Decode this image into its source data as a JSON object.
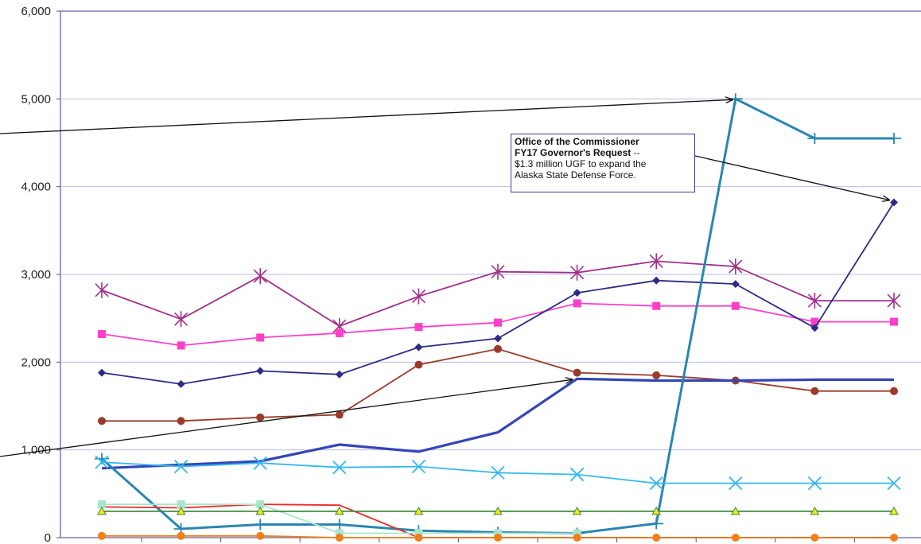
{
  "chart_data": {
    "type": "line",
    "title": "",
    "xlabel": "",
    "ylabel": "",
    "ylim": [
      0,
      6000
    ],
    "y_ticks": [
      "0",
      "1,000",
      "2,000",
      "3,000",
      "4,000",
      "5,000",
      "6,000"
    ],
    "grid": true,
    "x": [
      0,
      1,
      2,
      3,
      4,
      5,
      6,
      7,
      8,
      9,
      10
    ],
    "series": [
      {
        "color": "#a0308a",
        "marker": "asterisk",
        "values": [
          2820,
          2490,
          2980,
          2410,
          2750,
          3030,
          3020,
          3150,
          3090,
          2700,
          2700
        ]
      },
      {
        "color": "#ff3fc8",
        "marker": "square",
        "values": [
          2320,
          2190,
          2280,
          2330,
          2400,
          2450,
          2670,
          2640,
          2640,
          2460,
          2460
        ]
      },
      {
        "color": "#2c2c86",
        "marker": "diamond",
        "values": [
          1880,
          1750,
          1900,
          1860,
          2170,
          2270,
          2790,
          2930,
          2890,
          2390,
          3820
        ]
      },
      {
        "color": "#9a3a2a",
        "marker": "circle",
        "values": [
          1330,
          1330,
          1370,
          1400,
          1970,
          2150,
          1880,
          1850,
          1790,
          1670,
          1670
        ]
      },
      {
        "color": "#3346b8",
        "marker": "none",
        "values": [
          790,
          830,
          870,
          1060,
          980,
          1200,
          1810,
          1790,
          1790,
          1800,
          1800
        ]
      },
      {
        "color": "#2a86b0",
        "marker": "plus",
        "values": [
          900,
          100,
          150,
          150,
          80,
          60,
          50,
          160,
          5000,
          4550,
          4550
        ]
      },
      {
        "color": "#33b8f0",
        "marker": "x",
        "values": [
          860,
          810,
          850,
          800,
          810,
          740,
          720,
          620,
          620,
          620,
          620
        ]
      },
      {
        "color": "#ee2a2a",
        "marker": "none",
        "values": [
          350,
          340,
          380,
          370,
          0,
          0,
          0,
          0,
          0,
          0,
          0
        ]
      },
      {
        "color": "#a8e4cc",
        "marker": "square",
        "values": [
          380,
          380,
          380,
          50,
          50,
          50,
          50,
          null,
          null,
          null,
          null
        ]
      },
      {
        "color": "#3c8a3c",
        "marker": "triangle",
        "values": [
          300,
          300,
          300,
          300,
          300,
          300,
          300,
          300,
          300,
          300,
          300
        ]
      },
      {
        "color": "#f07f1a",
        "marker": "circle",
        "values": [
          20,
          20,
          20,
          0,
          0,
          0,
          0,
          0,
          0,
          0,
          0
        ]
      }
    ],
    "annotations": [
      {
        "title_line1": "Office of the Commissioner",
        "title_line2": "FY17 Governor's Request",
        "title_suffix": " --",
        "body_line1": "$1.3 million UGF to expand the",
        "body_line2": "Alaska State Defense Force."
      }
    ]
  }
}
